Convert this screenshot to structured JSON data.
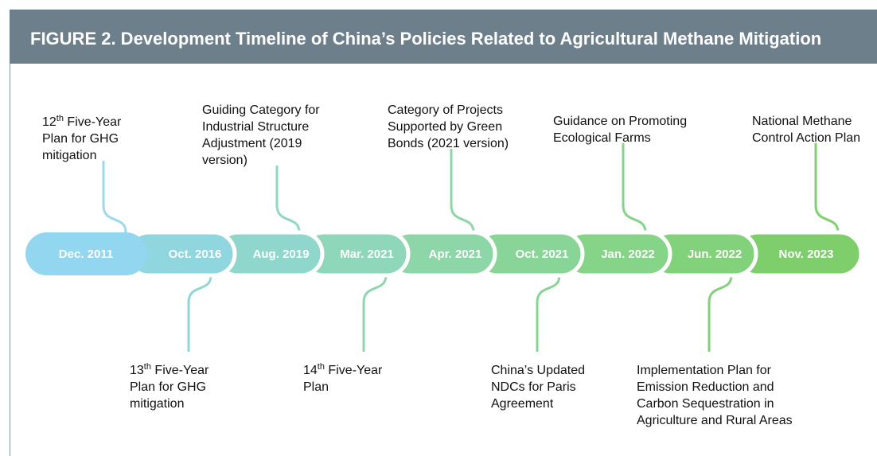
{
  "header": {
    "title": "FIGURE 2.  Development Timeline of China’s Policies Related to Agricultural Methane Mitigation"
  },
  "timeline": {
    "dates": [
      "Dec. 2011",
      "Oct. 2016",
      "Aug. 2019",
      "Mar. 2021",
      "Apr. 2021",
      "Oct. 2021",
      "Jan. 2022",
      "Jun. 2022",
      "Nov. 2023"
    ]
  },
  "events": [
    {
      "ordinal": "12",
      "suffix": "th",
      "lines": [
        " Five-Year",
        "Plan for GHG",
        "mitigation"
      ]
    },
    {
      "lines": [
        "Guiding Category for",
        "Industrial Structure",
        "Adjustment (2019",
        "version)"
      ]
    },
    {
      "lines": [
        "Category of Projects",
        "Supported by Green",
        "Bonds (2021 version)"
      ]
    },
    {
      "lines": [
        "Guidance on Promoting",
        "Ecological Farms"
      ]
    },
    {
      "lines": [
        "National Methane",
        "Control Action Plan"
      ]
    },
    {
      "ordinal": "13",
      "suffix": "th",
      "lines": [
        " Five-Year",
        "Plan for GHG",
        "mitigation"
      ]
    },
    {
      "ordinal": "14",
      "suffix": "th",
      "lines": [
        " Five-Year",
        "Plan"
      ]
    },
    {
      "lines": [
        "China’s Updated",
        "NDCs for Paris",
        "Agreement"
      ]
    },
    {
      "lines": [
        "Implementation Plan for",
        "Emission Reduction and",
        "Carbon Sequestration in",
        "Agriculture and Rural Areas"
      ]
    }
  ]
}
